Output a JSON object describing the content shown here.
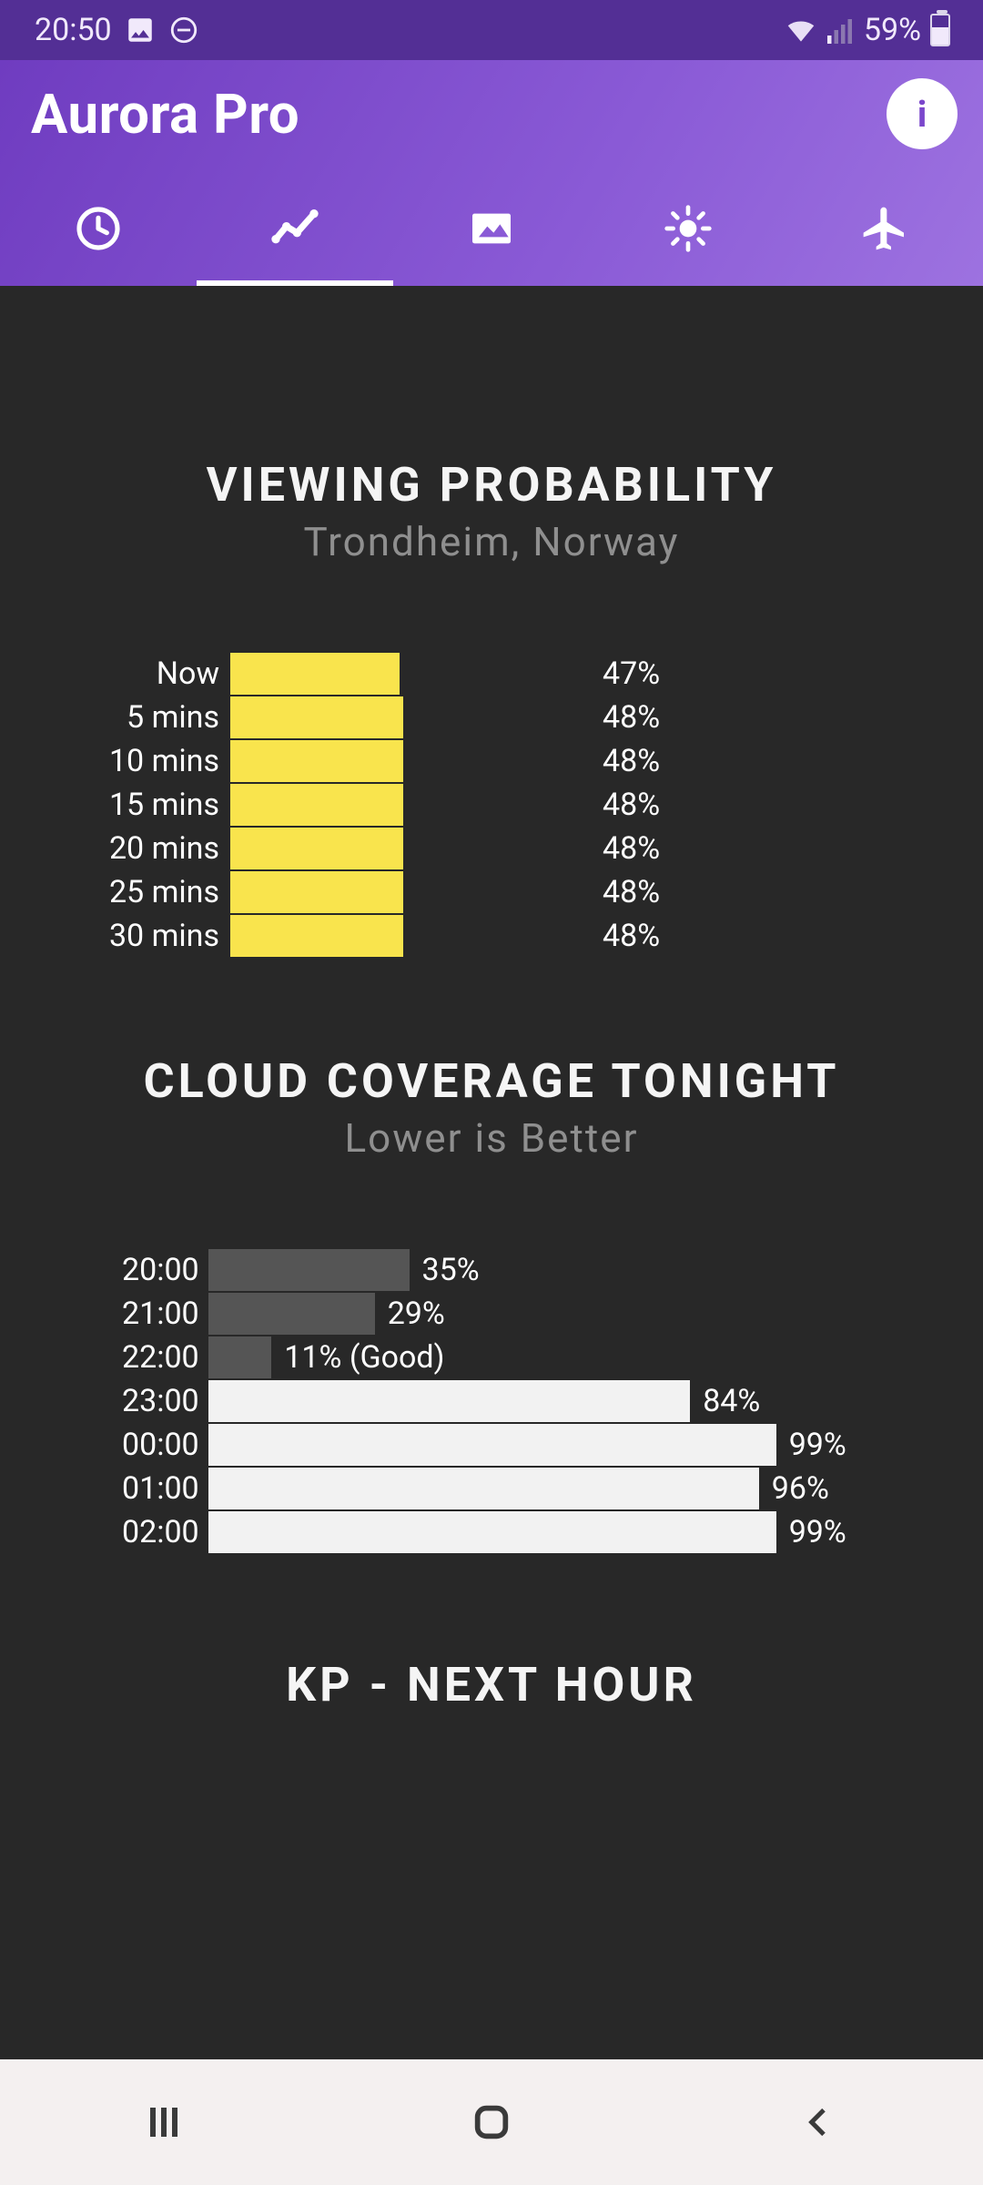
{
  "status": {
    "time": "20:50",
    "wifi_label": "6",
    "battery_pct": 59,
    "battery_text": "59%"
  },
  "app": {
    "title": "Aurora Pro"
  },
  "tabs": {
    "active_index": 1,
    "items": [
      "clock",
      "chart",
      "image",
      "sun",
      "plane"
    ]
  },
  "viewing_probability": {
    "title": "VIEWING PROBABILITY",
    "subtitle": "Trondheim, Norway",
    "type": "bar-horizontal",
    "bar_color": "#f9e44d",
    "max": 100,
    "rows": [
      {
        "label": "Now",
        "value": 47,
        "value_text": "47%"
      },
      {
        "label": "5 mins",
        "value": 48,
        "value_text": "48%"
      },
      {
        "label": "10 mins",
        "value": 48,
        "value_text": "48%"
      },
      {
        "label": "15 mins",
        "value": 48,
        "value_text": "48%"
      },
      {
        "label": "20 mins",
        "value": 48,
        "value_text": "48%"
      },
      {
        "label": "25 mins",
        "value": 48,
        "value_text": "48%"
      },
      {
        "label": "30 mins",
        "value": 48,
        "value_text": "48%"
      }
    ]
  },
  "cloud_coverage": {
    "title": "CLOUD COVERAGE TONIGHT",
    "subtitle": "Lower is Better",
    "type": "bar-horizontal",
    "good_threshold": 25,
    "low_color": "#555555",
    "high_color": "#f2f2f2",
    "max": 100,
    "rows": [
      {
        "label": "20:00",
        "value": 35,
        "value_text": "35%"
      },
      {
        "label": "21:00",
        "value": 29,
        "value_text": "29%"
      },
      {
        "label": "22:00",
        "value": 11,
        "value_text": "11% (Good)"
      },
      {
        "label": "23:00",
        "value": 84,
        "value_text": "84%"
      },
      {
        "label": "00:00",
        "value": 99,
        "value_text": "99%"
      },
      {
        "label": "01:00",
        "value": 96,
        "value_text": "96%"
      },
      {
        "label": "02:00",
        "value": 99,
        "value_text": "99%"
      }
    ]
  },
  "kp": {
    "title": "KP - NEXT HOUR"
  },
  "colors": {
    "background": "#282828",
    "status_bar": "#532f95",
    "app_bar_from": "#6f3cc0",
    "app_bar_to": "#9d72e0",
    "text": "#ffffff",
    "muted": "#8f8f8f",
    "nav_bar": "#f4f0f0"
  }
}
